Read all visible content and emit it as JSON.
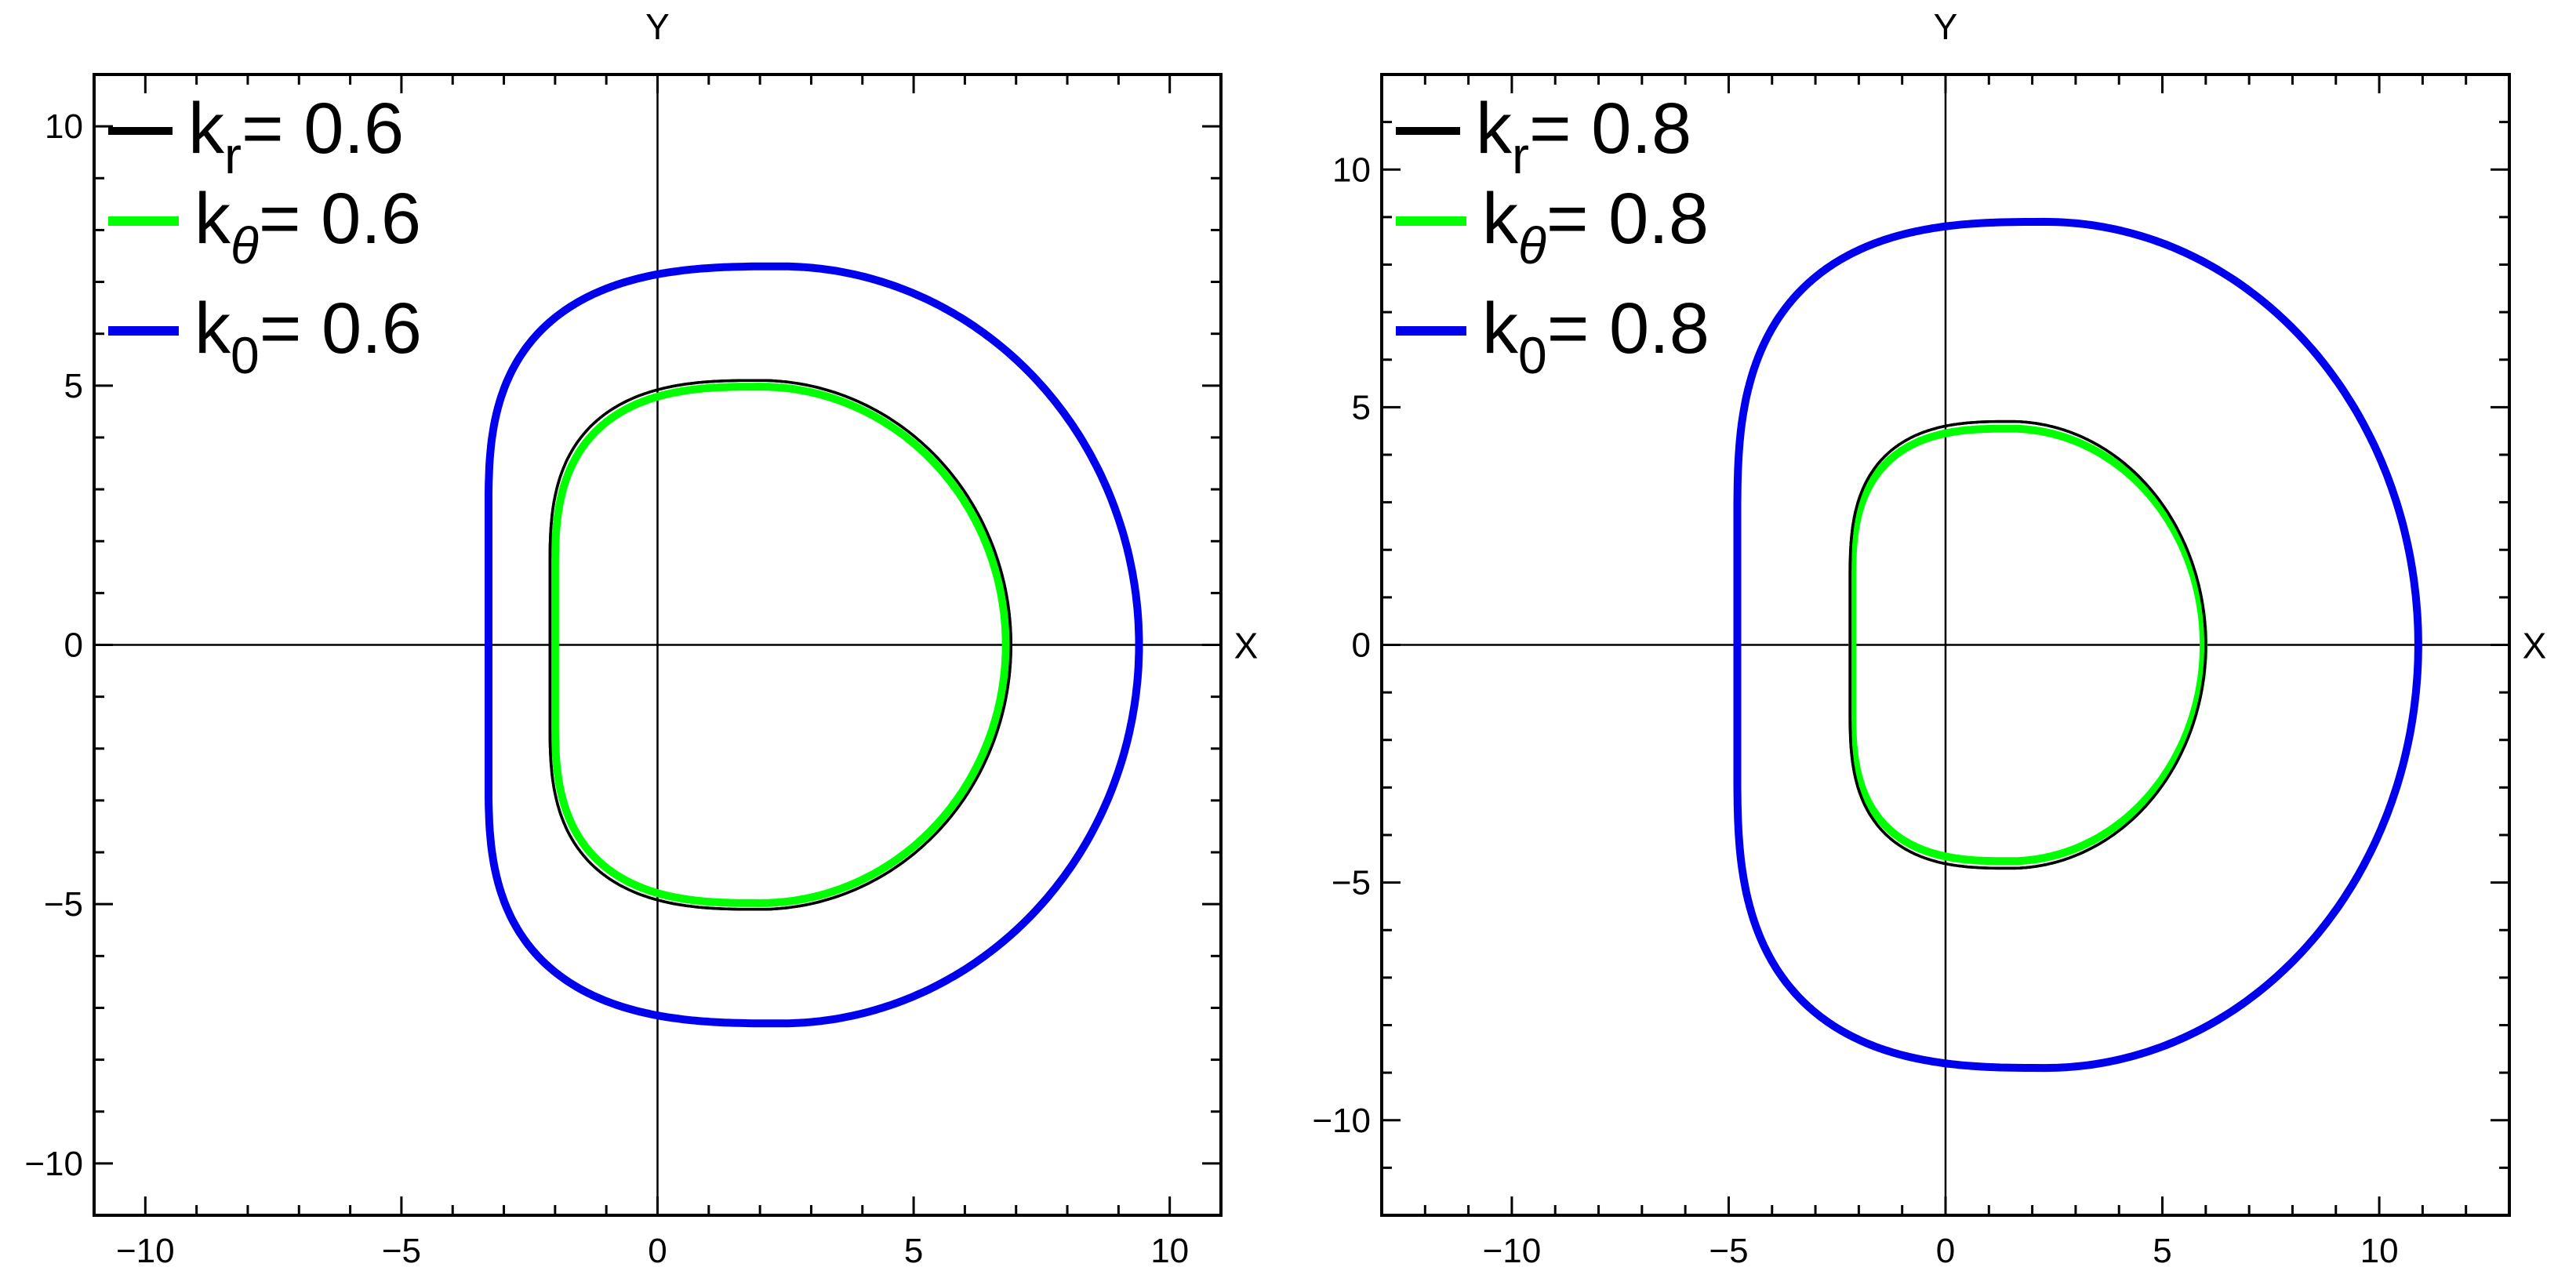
{
  "chart_data": [
    {
      "type": "line",
      "title": "",
      "xlabel": "X",
      "ylabel": "Y",
      "xlim": [
        -11,
        11
      ],
      "ylim": [
        -11,
        11
      ],
      "x_ticks": [
        -10,
        -5,
        0,
        5,
        10
      ],
      "y_ticks": [
        -10,
        -5,
        0,
        5,
        10
      ],
      "x_tick_labels": [
        "−10",
        "−5",
        "0",
        "5",
        "10"
      ],
      "y_tick_labels": [
        "−10",
        "−5",
        "0",
        "5",
        "10"
      ],
      "minor_tick_step": 1,
      "grid": false,
      "legend_position": "top-left",
      "series": [
        {
          "name": "k_r= 0.6",
          "legend_base": "k",
          "legend_sub": "r",
          "legend_value": "= 0.6",
          "color": "#000000",
          "params": {
            "x_left": -2.1,
            "x_right": 6.9,
            "peak_x": 2.0,
            "y_max": 5.1,
            "flat_half_height": 1.5
          }
        },
        {
          "name": "k_θ= 0.6",
          "legend_base": "k",
          "legend_sub": "θ",
          "legend_value": "= 0.6",
          "color": "#00ff00",
          "params": {
            "x_left": -2.0,
            "x_right": 6.8,
            "peak_x": 2.0,
            "y_max": 4.98,
            "flat_half_height": 1.4
          }
        },
        {
          "name": "k_0= 0.6",
          "legend_base": "k",
          "legend_sub": "0",
          "legend_value": "= 0.6",
          "color": "#0000ee",
          "params": {
            "x_left": -3.3,
            "x_right": 9.4,
            "peak_x": 2.4,
            "y_max": 7.3,
            "flat_half_height": 2.6
          }
        }
      ]
    },
    {
      "type": "line",
      "title": "",
      "xlabel": "X",
      "ylabel": "Y",
      "xlim": [
        -13,
        13
      ],
      "ylim": [
        -12,
        12
      ],
      "x_ticks": [
        -10,
        -5,
        0,
        5,
        10
      ],
      "y_ticks": [
        -10,
        -5,
        0,
        5,
        10
      ],
      "x_tick_labels": [
        "−10",
        "−5",
        "0",
        "5",
        "10"
      ],
      "y_tick_labels": [
        "−10",
        "−5",
        "0",
        "5",
        "10"
      ],
      "minor_tick_step": 1,
      "grid": false,
      "legend_position": "top-left",
      "series": [
        {
          "name": "k_r= 0.8",
          "legend_base": "k",
          "legend_sub": "r",
          "legend_value": "= 0.8",
          "color": "#000000",
          "params": {
            "x_left": -2.2,
            "x_right": 6.0,
            "peak_x": 1.5,
            "y_max": 4.7,
            "flat_half_height": 1.4
          }
        },
        {
          "name": "k_θ= 0.8",
          "legend_base": "k",
          "legend_sub": "θ",
          "legend_value": "= 0.8",
          "color": "#00ff00",
          "params": {
            "x_left": -2.15,
            "x_right": 5.95,
            "peak_x": 1.5,
            "y_max": 4.55,
            "flat_half_height": 1.3
          }
        },
        {
          "name": "k_0= 0.8",
          "legend_base": "k",
          "legend_sub": "0",
          "legend_value": "= 0.8",
          "color": "#0000ee",
          "params": {
            "x_left": -4.8,
            "x_right": 10.9,
            "peak_x": 2.3,
            "y_max": 8.9,
            "flat_half_height": 2.7
          }
        }
      ]
    }
  ]
}
